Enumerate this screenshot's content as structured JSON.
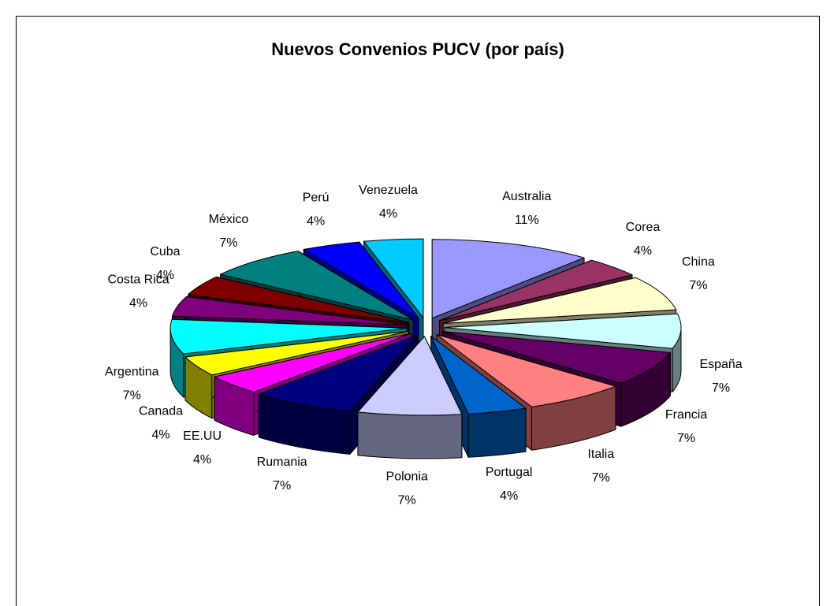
{
  "chart_data": {
    "type": "pie3d",
    "title": "Nuevos Convenios PUCV (por país)",
    "categories": [
      "Australia",
      "Corea",
      "China",
      "España",
      "Francia",
      "Italia",
      "Portugal",
      "Polonia",
      "Rumania",
      "EE.UU",
      "Canada",
      "Argentina",
      "Costa Rica",
      "Cuba",
      "México",
      "Perú",
      "Venezuela"
    ],
    "values": [
      11,
      4,
      7,
      7,
      7,
      7,
      4,
      7,
      7,
      4,
      4,
      7,
      4,
      4,
      7,
      4,
      4
    ],
    "value_labels": [
      "11%",
      "4%",
      "7%",
      "7%",
      "7%",
      "7%",
      "4%",
      "7%",
      "7%",
      "4%",
      "4%",
      "7%",
      "4%",
      "4%",
      "7%",
      "4%",
      "4%"
    ],
    "colors": [
      "#9999FF",
      "#993366",
      "#FFFFCC",
      "#CCFFFF",
      "#660066",
      "#FF8080",
      "#0066CC",
      "#CCCCFF",
      "#000080",
      "#FF00FF",
      "#FFFF00",
      "#00FFFF",
      "#800080",
      "#800000",
      "#008080",
      "#0000FF",
      "#00CCFF"
    ]
  }
}
